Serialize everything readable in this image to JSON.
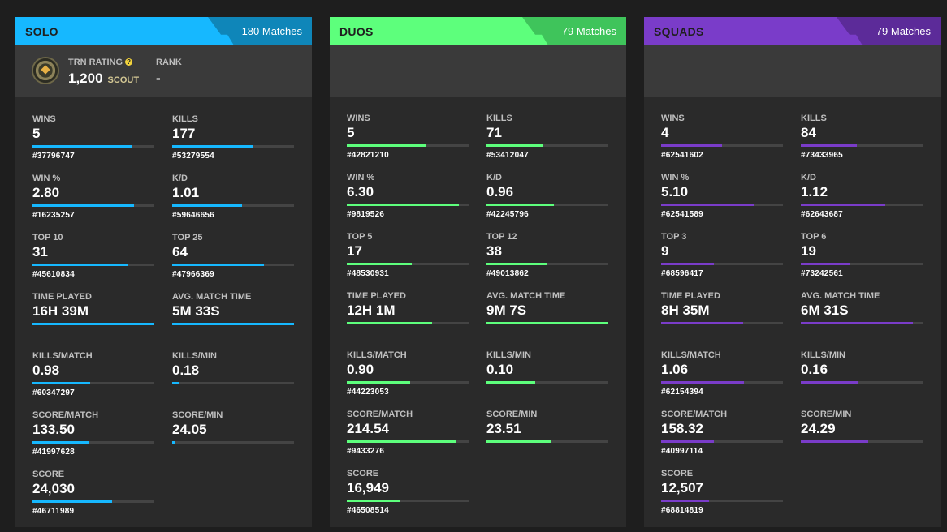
{
  "cards": [
    {
      "key": "solo",
      "title": "SOLO",
      "matches": "180 Matches",
      "rating": {
        "label": "TRN RATING",
        "value": "1,200",
        "tier": "SCOUT",
        "rank_label": "RANK",
        "rank_value": "-"
      },
      "stats": [
        {
          "label": "WINS",
          "value": "5",
          "rank": "#37796747",
          "fill": 0.82
        },
        {
          "label": "KILLS",
          "value": "177",
          "rank": "#53279554",
          "fill": 0.66
        },
        {
          "label": "WIN %",
          "value": "2.80",
          "rank": "#16235257",
          "fill": 0.83
        },
        {
          "label": "K/D",
          "value": "1.01",
          "rank": "#59646656",
          "fill": 0.57
        },
        {
          "label": "TOP 10",
          "value": "31",
          "rank": "#45610834",
          "fill": 0.78
        },
        {
          "label": "TOP 25",
          "value": "64",
          "rank": "#47966369",
          "fill": 0.75
        },
        {
          "label": "TIME PLAYED",
          "value": "16H 39M",
          "rank": "",
          "fill": 1.0
        },
        {
          "label": "AVG. MATCH TIME",
          "value": "5M 33S",
          "rank": "",
          "fill": 1.0
        },
        {
          "label": "KILLS/MATCH",
          "value": "0.98",
          "rank": "#60347297",
          "fill": 0.47
        },
        {
          "label": "KILLS/MIN",
          "value": "0.18",
          "rank": "",
          "fill": 0.05
        },
        {
          "label": "SCORE/MATCH",
          "value": "133.50",
          "rank": "#41997628",
          "fill": 0.46
        },
        {
          "label": "SCORE/MIN",
          "value": "24.05",
          "rank": "",
          "fill": 0.02
        },
        {
          "label": "SCORE",
          "value": "24,030",
          "rank": "#46711989",
          "fill": 0.65
        }
      ]
    },
    {
      "key": "duos",
      "title": "DUOS",
      "matches": "79 Matches",
      "stats": [
        {
          "label": "WINS",
          "value": "5",
          "rank": "#42821210",
          "fill": 0.65
        },
        {
          "label": "KILLS",
          "value": "71",
          "rank": "#53412047",
          "fill": 0.46
        },
        {
          "label": "WIN %",
          "value": "6.30",
          "rank": "#9819526",
          "fill": 0.92
        },
        {
          "label": "K/D",
          "value": "0.96",
          "rank": "#42245796",
          "fill": 0.55
        },
        {
          "label": "TOP 5",
          "value": "17",
          "rank": "#48530931",
          "fill": 0.53
        },
        {
          "label": "TOP 12",
          "value": "38",
          "rank": "#49013862",
          "fill": 0.5
        },
        {
          "label": "TIME PLAYED",
          "value": "12H 1M",
          "rank": "",
          "fill": 0.7
        },
        {
          "label": "AVG. MATCH TIME",
          "value": "9M 7S",
          "rank": "",
          "fill": 0.99
        },
        {
          "label": "KILLS/MATCH",
          "value": "0.90",
          "rank": "#44223053",
          "fill": 0.52
        },
        {
          "label": "KILLS/MIN",
          "value": "0.10",
          "rank": "",
          "fill": 0.4
        },
        {
          "label": "SCORE/MATCH",
          "value": "214.54",
          "rank": "#9433276",
          "fill": 0.89
        },
        {
          "label": "SCORE/MIN",
          "value": "23.51",
          "rank": "",
          "fill": 0.53
        },
        {
          "label": "SCORE",
          "value": "16,949",
          "rank": "#46508514",
          "fill": 0.44
        }
      ]
    },
    {
      "key": "squads",
      "title": "SQUADS",
      "matches": "79 Matches",
      "stats": [
        {
          "label": "WINS",
          "value": "4",
          "rank": "#62541602",
          "fill": 0.5
        },
        {
          "label": "KILLS",
          "value": "84",
          "rank": "#73433965",
          "fill": 0.46
        },
        {
          "label": "WIN %",
          "value": "5.10",
          "rank": "#62541589",
          "fill": 0.76
        },
        {
          "label": "K/D",
          "value": "1.12",
          "rank": "#62643687",
          "fill": 0.69
        },
        {
          "label": "TOP 3",
          "value": "9",
          "rank": "#68596417",
          "fill": 0.43
        },
        {
          "label": "TOP 6",
          "value": "19",
          "rank": "#73242561",
          "fill": 0.4
        },
        {
          "label": "TIME PLAYED",
          "value": "8H 35M",
          "rank": "",
          "fill": 0.67
        },
        {
          "label": "AVG. MATCH TIME",
          "value": "6M 31S",
          "rank": "",
          "fill": 0.92
        },
        {
          "label": "KILLS/MATCH",
          "value": "1.06",
          "rank": "#62154394",
          "fill": 0.68
        },
        {
          "label": "KILLS/MIN",
          "value": "0.16",
          "rank": "",
          "fill": 0.47
        },
        {
          "label": "SCORE/MATCH",
          "value": "158.32",
          "rank": "#40997114",
          "fill": 0.43
        },
        {
          "label": "SCORE/MIN",
          "value": "24.29",
          "rank": "",
          "fill": 0.55
        },
        {
          "label": "SCORE",
          "value": "12,507",
          "rank": "#68814819",
          "fill": 0.39
        }
      ]
    }
  ],
  "colors": {
    "solo": "#16b8ff",
    "duos": "#5dff7c",
    "squads": "#7a3cc9"
  },
  "icons": {
    "rating_emblem": "trn-rating-emblem-icon",
    "help": "help-icon"
  }
}
